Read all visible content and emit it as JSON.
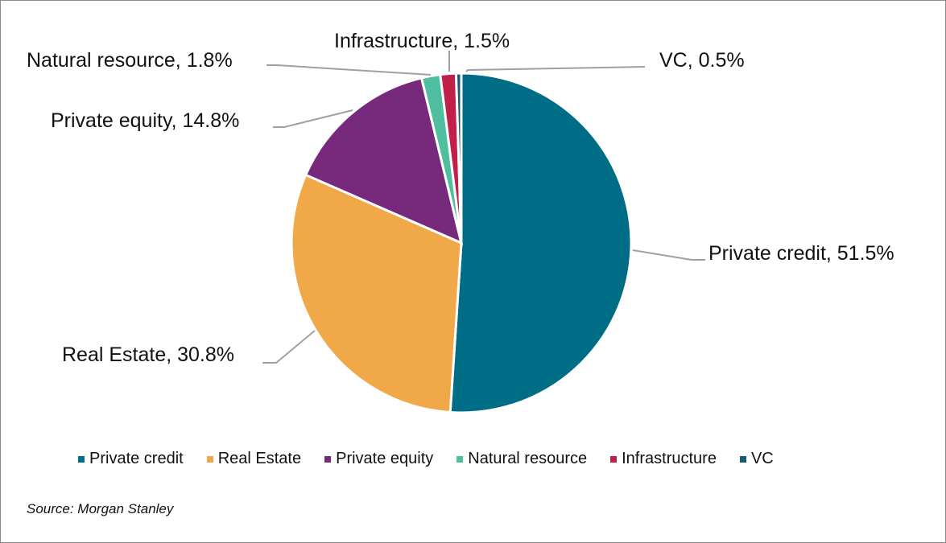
{
  "chart_data": {
    "type": "pie",
    "start_angle": "12 o'clock, clockwise",
    "slices": [
      {
        "name": "Private credit",
        "value": 51.5,
        "label": "Private credit, 51.5%",
        "color": "#006d87"
      },
      {
        "name": "Real Estate",
        "value": 30.8,
        "label": "Real Estate, 30.8%",
        "color": "#f0a848"
      },
      {
        "name": "Private equity",
        "value": 14.8,
        "label": "Private equity, 14.8%",
        "color": "#772a7c"
      },
      {
        "name": "Natural resource",
        "value": 1.8,
        "label": "Natural resource, 1.8%",
        "color": "#4fbf9f"
      },
      {
        "name": "Infrastructure",
        "value": 1.5,
        "label": "Infrastructure, 1.5%",
        "color": "#c0204a"
      },
      {
        "name": "VC",
        "value": 0.5,
        "label": "VC, 0.5%",
        "color": "#1a5a78"
      }
    ],
    "legend_position": "bottom",
    "source": "Source: Morgan Stanley"
  }
}
